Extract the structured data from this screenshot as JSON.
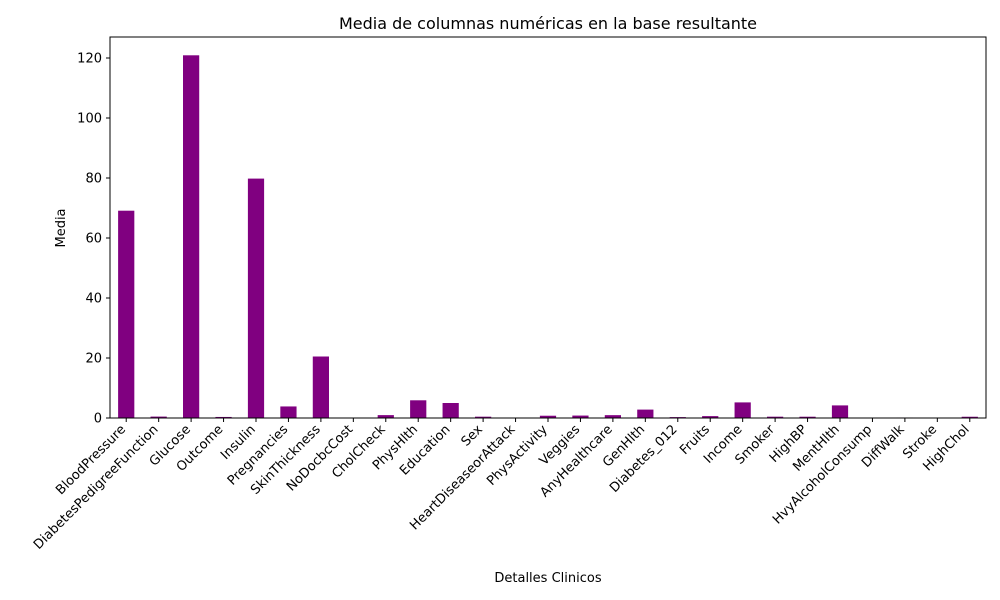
{
  "chart_data": {
    "type": "bar",
    "title": "Media de columnas numéricas en la base resultante",
    "xlabel": "Detalles Clinicos",
    "ylabel": "Media",
    "ylim": [
      0,
      127
    ],
    "yticks": [
      0,
      20,
      40,
      60,
      80,
      100,
      120
    ],
    "grid": false,
    "bar_color": "#800080",
    "categories": [
      "BloodPressure",
      "DiabetesPedigreeFunction",
      "Glucose",
      "Outcome",
      "Insulin",
      "Pregnancies",
      "SkinThickness",
      "NoDocbcCost",
      "CholCheck",
      "PhysHlth",
      "Education",
      "Sex",
      "HeartDiseaseorAttack",
      "PhysActivity",
      "Veggies",
      "AnyHealthcare",
      "GenHlth",
      "Diabetes_012",
      "Fruits",
      "Income",
      "Smoker",
      "HighBP",
      "MentHlth",
      "HvyAlcoholConsump",
      "DiffWalk",
      "Stroke",
      "HighChol"
    ],
    "values": [
      69.1,
      0.47,
      120.9,
      0.35,
      79.8,
      3.85,
      20.5,
      0.08,
      0.96,
      5.9,
      5.0,
      0.44,
      0.09,
      0.76,
      0.81,
      0.95,
      2.8,
      0.3,
      0.63,
      5.2,
      0.44,
      0.43,
      4.2,
      0.06,
      0.17,
      0.04,
      0.42
    ]
  }
}
